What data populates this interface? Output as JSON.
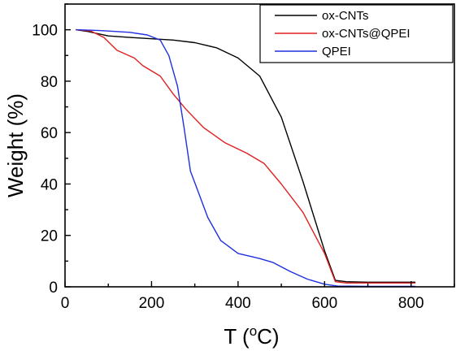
{
  "chart_data": {
    "type": "line",
    "xlabel": {
      "main": "T (",
      "sup": "o",
      "tail": "C)"
    },
    "ylabel": "Weight (%)",
    "xlim": [
      0,
      900
    ],
    "ylim": [
      0,
      110
    ],
    "xticks": [
      0,
      200,
      400,
      600,
      800
    ],
    "yticks": [
      0,
      20,
      40,
      60,
      80,
      100
    ],
    "grid": false,
    "legend_position": "top-right",
    "series": [
      {
        "name": "ox-CNTs",
        "color": "#000000",
        "points": [
          [
            25,
            100
          ],
          [
            50,
            99.4
          ],
          [
            100,
            97.6
          ],
          [
            150,
            97
          ],
          [
            200,
            96.5
          ],
          [
            250,
            96
          ],
          [
            300,
            95
          ],
          [
            350,
            93
          ],
          [
            400,
            89
          ],
          [
            450,
            82
          ],
          [
            500,
            66
          ],
          [
            550,
            41
          ],
          [
            600,
            14
          ],
          [
            625,
            2.5
          ],
          [
            650,
            2
          ],
          [
            700,
            1.8
          ],
          [
            750,
            1.8
          ],
          [
            810,
            1.8
          ]
        ]
      },
      {
        "name": "ox-CNTs@QPEI",
        "color": "#e02020",
        "points": [
          [
            25,
            100
          ],
          [
            60,
            99.5
          ],
          [
            90,
            97
          ],
          [
            120,
            92
          ],
          [
            160,
            89
          ],
          [
            180,
            86
          ],
          [
            220,
            82
          ],
          [
            250,
            75
          ],
          [
            280,
            69
          ],
          [
            320,
            62
          ],
          [
            370,
            56
          ],
          [
            420,
            52
          ],
          [
            460,
            48
          ],
          [
            500,
            40
          ],
          [
            550,
            29
          ],
          [
            600,
            13
          ],
          [
            625,
            2
          ],
          [
            650,
            1.5
          ],
          [
            700,
            1.5
          ],
          [
            810,
            1.5
          ]
        ]
      },
      {
        "name": "QPEI",
        "color": "#2030e0",
        "points": [
          [
            25,
            100
          ],
          [
            80,
            99.7
          ],
          [
            150,
            99
          ],
          [
            190,
            98
          ],
          [
            220,
            96
          ],
          [
            240,
            90
          ],
          [
            260,
            78
          ],
          [
            275,
            62
          ],
          [
            290,
            45
          ],
          [
            310,
            36
          ],
          [
            330,
            27
          ],
          [
            360,
            18
          ],
          [
            400,
            13
          ],
          [
            450,
            11
          ],
          [
            480,
            9.5
          ],
          [
            520,
            6
          ],
          [
            560,
            3
          ],
          [
            600,
            1
          ],
          [
            630,
            0.3
          ],
          [
            700,
            0.2
          ],
          [
            810,
            0.2
          ]
        ]
      }
    ]
  }
}
